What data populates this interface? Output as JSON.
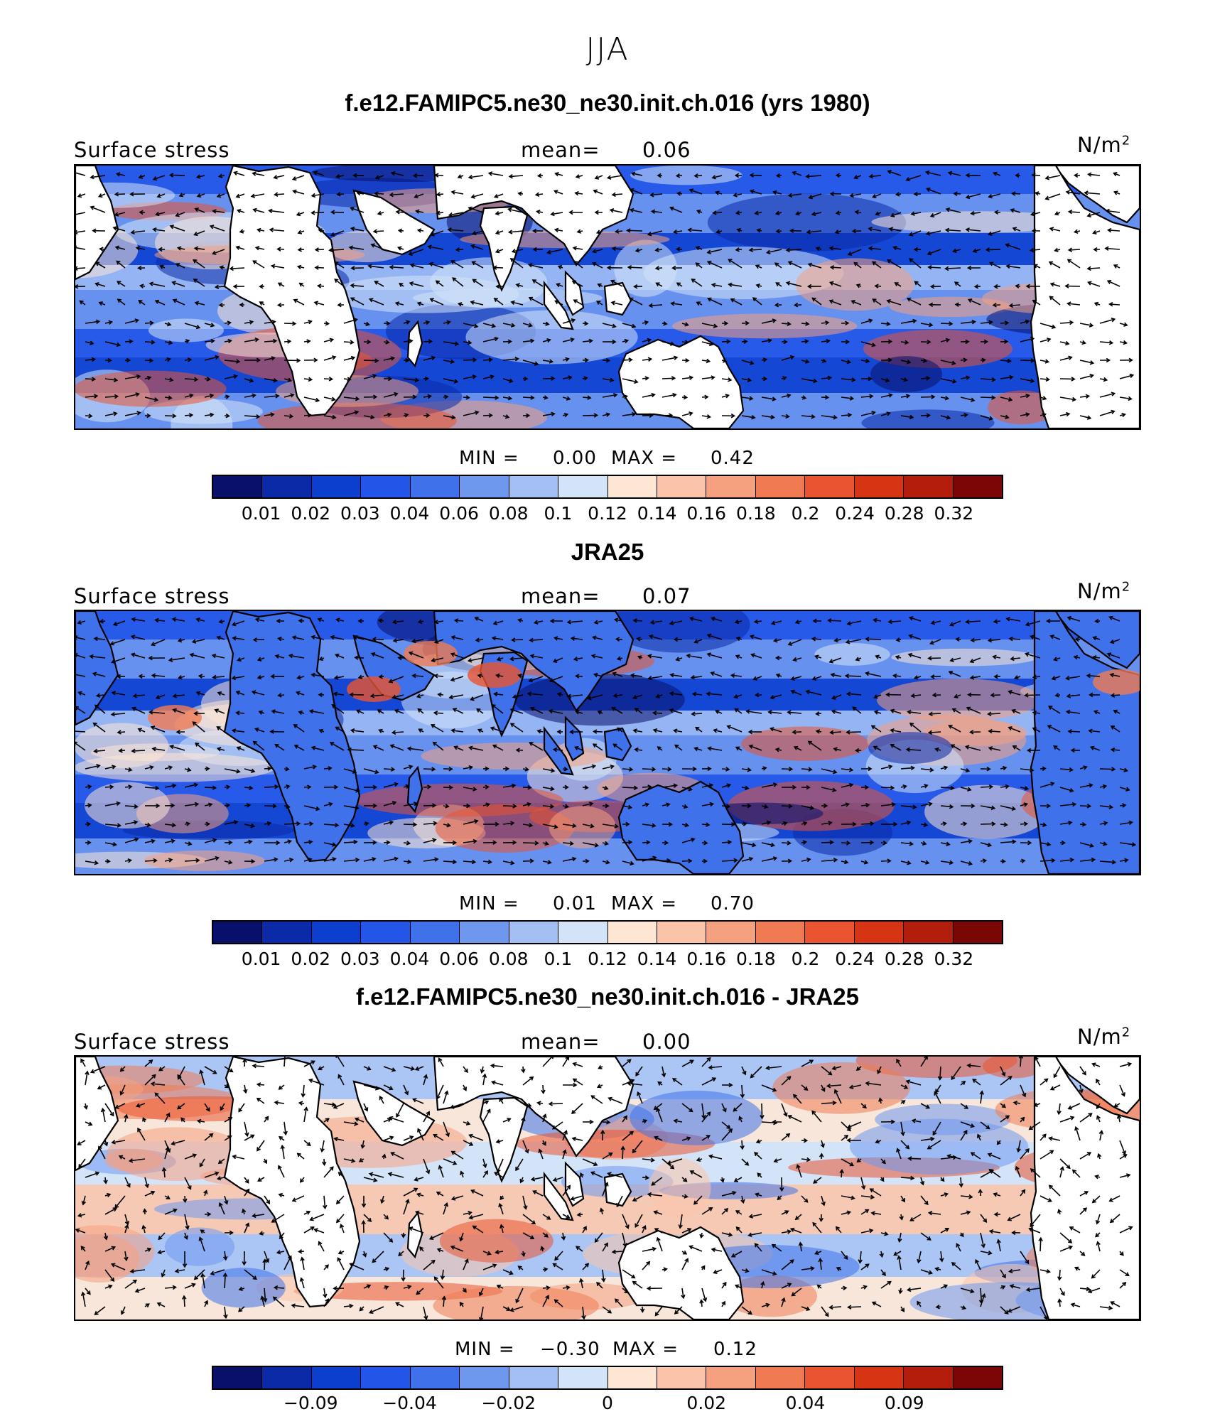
{
  "figure_title": "JJA",
  "colors": {
    "land": "#ffffff",
    "coast": "#000000",
    "palette": [
      "#08106b",
      "#0a2aa8",
      "#0d3fcf",
      "#2356e8",
      "#3f72ea",
      "#6e97ee",
      "#a3bff4",
      "#d3e4f8",
      "#fde6d4",
      "#fbc4a9",
      "#f5a07f",
      "#f07b52",
      "#ea5430",
      "#d63412",
      "#b21e0b",
      "#7a0606"
    ]
  },
  "panels": [
    {
      "title": "f.e12.FAMIPC5.ne30_ne30.init.ch.016 (yrs 1980)",
      "left_label": "Surface stress",
      "mean_label": "mean=",
      "mean_value": "0.06",
      "unit_text": "N/m",
      "unit_sup": "2",
      "min_label": "MIN =",
      "min_value": "0.00",
      "max_label": "MAX =",
      "max_value": "0.42",
      "colorbar_ticks": [
        "0.01",
        "0.02",
        "0.03",
        "0.04",
        "0.06",
        "0.08",
        "0.1",
        "0.12",
        "0.14",
        "0.16",
        "0.18",
        "0.2",
        "0.24",
        "0.28",
        "0.32"
      ]
    },
    {
      "title": "JRA25",
      "left_label": "Surface stress",
      "mean_label": "mean=",
      "mean_value": "0.07",
      "unit_text": "N/m",
      "unit_sup": "2",
      "min_label": "MIN =",
      "min_value": "0.01",
      "max_label": "MAX =",
      "max_value": "0.70",
      "colorbar_ticks": [
        "0.01",
        "0.02",
        "0.03",
        "0.04",
        "0.06",
        "0.08",
        "0.1",
        "0.12",
        "0.14",
        "0.16",
        "0.18",
        "0.2",
        "0.24",
        "0.28",
        "0.32"
      ]
    },
    {
      "title": "f.e12.FAMIPC5.ne30_ne30.init.ch.016 - JRA25",
      "left_label": "Surface stress",
      "mean_label": "mean=",
      "mean_value": "0.00",
      "unit_text": "N/m",
      "unit_sup": "2",
      "min_label": "MIN =",
      "min_value": "−0.30",
      "max_label": "MAX =",
      "max_value": "0.12",
      "colorbar_ticks": [
        "−0.09",
        "−0.04",
        "−0.02",
        "0",
        "0.02",
        "0.04",
        "0.09"
      ]
    }
  ]
}
